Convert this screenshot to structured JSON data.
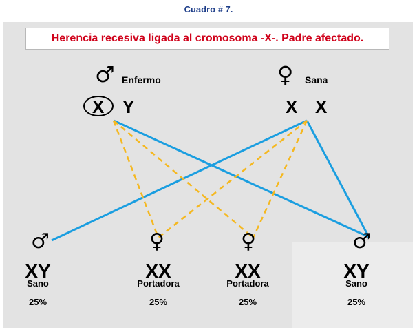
{
  "caption": "Cuadro # 7.",
  "title": "Herencia recesiva ligada al cromosoma -X-. Padre afectado.",
  "colors": {
    "title": "#d0021b",
    "caption": "#1f3f8a",
    "line_blue": "#1a9ee0",
    "line_dashed": "#f5b820",
    "panel": "#e3e3e3"
  },
  "father": {
    "symbol": "♂",
    "label": "Enfermo",
    "allele_affected": "X",
    "allele_y": "Y"
  },
  "mother": {
    "symbol": "♀",
    "label": "Sana",
    "allele_1": "X",
    "allele_2": "X"
  },
  "offspring": [
    {
      "symbol": "♂",
      "genotype": "XY",
      "status": "Sano",
      "percent": "25%"
    },
    {
      "symbol": "♀",
      "genotype": "XX",
      "status": "Portadora",
      "percent": "25%"
    },
    {
      "symbol": "♀",
      "genotype": "XX",
      "status": "Portadora",
      "percent": "25%"
    },
    {
      "symbol": "♂",
      "genotype": "XY",
      "status": "Sano",
      "percent": "25%"
    }
  ]
}
